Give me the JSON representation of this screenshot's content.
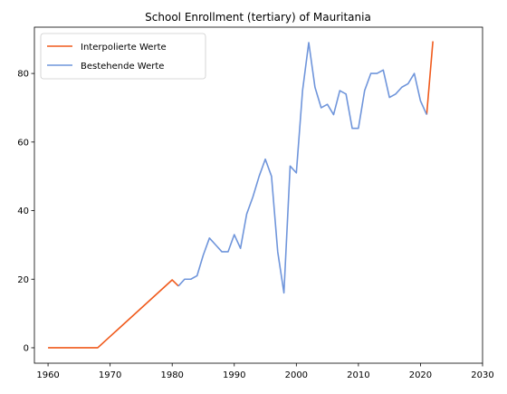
{
  "chart_data": {
    "type": "line",
    "title": "School Enrollment (tertiary) of Mauritania",
    "xlabel": "",
    "ylabel": "",
    "xlim": [
      1957.8,
      2030
    ],
    "ylim": [
      -4.5,
      93.5
    ],
    "xticks": [
      1960,
      1970,
      1980,
      1990,
      2000,
      2010,
      2020,
      2030
    ],
    "yticks": [
      0,
      20,
      40,
      60,
      80
    ],
    "grid": false,
    "legend_position": "top-left",
    "series": [
      {
        "name": "Interpolierte Werte",
        "color": "#f05a1c",
        "x": [
          1960,
          1961,
          1962,
          1963,
          1964,
          1965,
          1966,
          1967,
          1968,
          1969,
          1970,
          1971,
          1972,
          1973,
          1974,
          1975,
          1976,
          1977,
          1978,
          1979,
          1980,
          1981,
          2021,
          2022
        ],
        "y": [
          0,
          0,
          0,
          0,
          0,
          0,
          0,
          0,
          0,
          1.65,
          3.3,
          4.95,
          6.6,
          8.25,
          9.9,
          11.55,
          13.2,
          14.85,
          16.5,
          18.15,
          19.8,
          18,
          68,
          89.4
        ]
      },
      {
        "name": "Bestehende Werte",
        "color": "#6f95db",
        "x": [
          1981,
          1982,
          1983,
          1984,
          1985,
          1986,
          1987,
          1988,
          1989,
          1990,
          1991,
          1992,
          1993,
          1994,
          1995,
          1996,
          1997,
          1998,
          1999,
          2000,
          2001,
          2002,
          2003,
          2004,
          2005,
          2006,
          2007,
          2008,
          2009,
          2010,
          2011,
          2012,
          2013,
          2014,
          2015,
          2016,
          2017,
          2018,
          2019,
          2020,
          2021
        ],
        "y": [
          18,
          20,
          20,
          21,
          27,
          32,
          30,
          28,
          28,
          33,
          29,
          39,
          44,
          50,
          55,
          50,
          28,
          16,
          53,
          51,
          75,
          89,
          76,
          70,
          71,
          68,
          75,
          74,
          64,
          64,
          75,
          80,
          80,
          81,
          73,
          74,
          76,
          77,
          80,
          72,
          68
        ]
      }
    ]
  }
}
